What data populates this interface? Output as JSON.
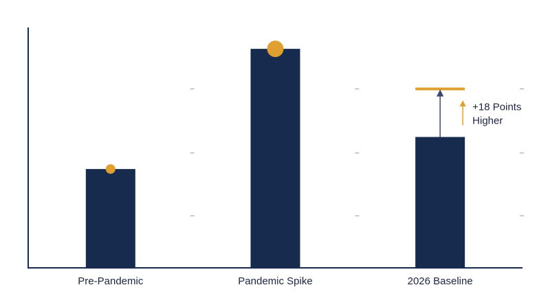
{
  "chart_data": {
    "type": "bar",
    "categories": [
      "Pre-Pandemic",
      "Pandemic Spike",
      "2026 Baseline"
    ],
    "values": [
      37,
      82,
      49
    ],
    "color": "#172b4f",
    "marker_color": "#e0a030",
    "target": {
      "category": 2,
      "value": 67,
      "color": "#e0a030"
    },
    "annotation": [
      "+18 Points",
      "Higher"
    ],
    "ylim": [
      0,
      90
    ],
    "yticks": [
      19.5,
      43,
      67
    ]
  }
}
